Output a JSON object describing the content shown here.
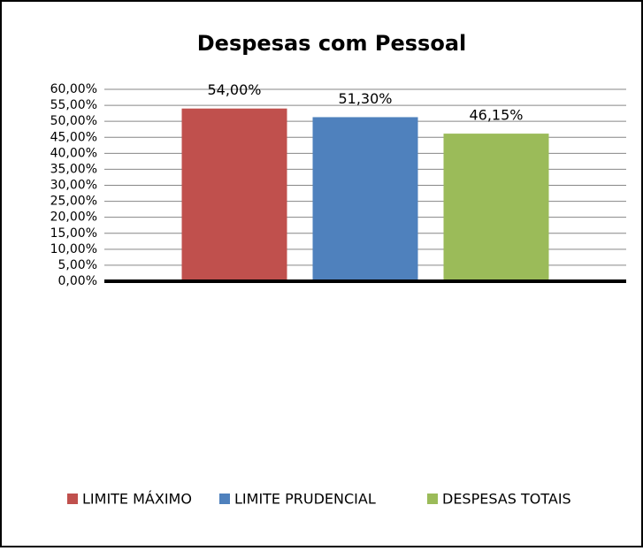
{
  "chart_data": {
    "type": "bar",
    "title": "Despesas com Pessoal",
    "categories": [
      null
    ],
    "series": [
      {
        "name": "LIMITE MÁXIMO",
        "color": "#c0504d",
        "values": [
          54
        ],
        "value_labels": [
          "54,00%"
        ]
      },
      {
        "name": "LIMITE PRUDENCIAL",
        "color": "#4f81bd",
        "values": [
          51.3
        ],
        "value_labels": [
          "51,30%"
        ]
      },
      {
        "name": "DESPESAS TOTAIS",
        "color": "#9bbb59",
        "values": [
          46.15
        ],
        "value_labels": [
          "46,15%"
        ]
      }
    ],
    "ylim": [
      0,
      60
    ],
    "yticks": [
      {
        "value": 0,
        "label": "0,00%"
      },
      {
        "value": 5,
        "label": "5,00%"
      },
      {
        "value": 10,
        "label": "10,00%"
      },
      {
        "value": 15,
        "label": "15,00%"
      },
      {
        "value": 20,
        "label": "20,00%"
      },
      {
        "value": 25,
        "label": "25,00%"
      },
      {
        "value": 30,
        "label": "30,00%"
      },
      {
        "value": 35,
        "label": "35,00%"
      },
      {
        "value": 40,
        "label": "40,00%"
      },
      {
        "value": 45,
        "label": "45,00%"
      },
      {
        "value": 50,
        "label": "50,00%"
      },
      {
        "value": 55,
        "label": "55,00%"
      },
      {
        "value": 60,
        "label": "60,00%"
      }
    ],
    "grid": true,
    "legend": "bottom"
  }
}
